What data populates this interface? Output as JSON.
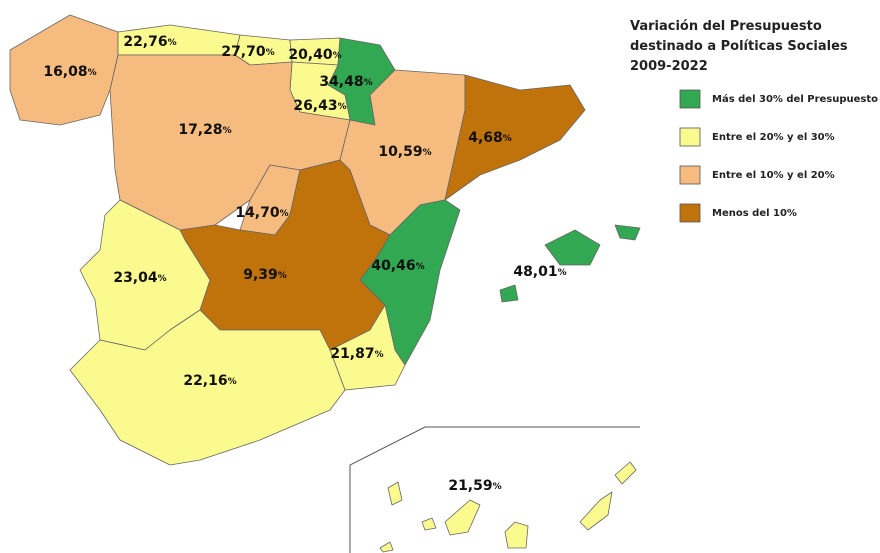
{
  "legend": {
    "title": [
      "Variación del Presupuesto",
      "destinado a Políticas Sociales",
      "2009-2022"
    ],
    "items": [
      {
        "label": "Más del 30% del Presupuesto",
        "color": "#33a852"
      },
      {
        "label": "Entre el 20% y el 30%",
        "color": "#fbfa8e"
      },
      {
        "label": "Entre el 10% y el 20%",
        "color": "#f6bb7f"
      },
      {
        "label": "Menos del 10%",
        "color": "#c0730b"
      }
    ]
  },
  "unit": "%",
  "regions": [
    {
      "label": "16,08",
      "color": "#f6bb7f"
    },
    {
      "label": "22,76",
      "color": "#fbfa8e"
    },
    {
      "label": "27,70",
      "color": "#fbfa8e"
    },
    {
      "label": "20,40",
      "color": "#fbfa8e"
    },
    {
      "label": "34,48",
      "color": "#33a852"
    },
    {
      "label": "26,43",
      "color": "#fbfa8e"
    },
    {
      "label": "17,28",
      "color": "#f6bb7f"
    },
    {
      "label": "10,59",
      "color": "#f6bb7f"
    },
    {
      "label": "4,68",
      "color": "#c0730b"
    },
    {
      "label": "14,70",
      "color": "#f6bb7f"
    },
    {
      "label": "9,39",
      "color": "#c0730b"
    },
    {
      "label": "40,46",
      "color": "#33a852"
    },
    {
      "label": "48,01",
      "color": "#33a852"
    },
    {
      "label": "23,04",
      "color": "#fbfa8e"
    },
    {
      "label": "21,87",
      "color": "#fbfa8e"
    },
    {
      "label": "22,16",
      "color": "#fbfa8e"
    },
    {
      "label": "21,59",
      "color": "#fbfa8e"
    }
  ]
}
